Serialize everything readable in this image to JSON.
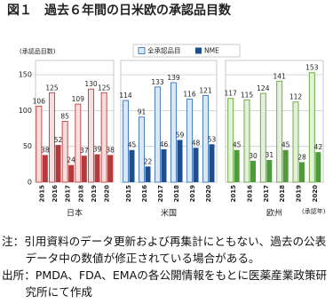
{
  "title": "図１　過去６年間の日米欧の承認品目数",
  "y_label": "(承認品目数)",
  "x_label": "(承認年)",
  "notes": [
    "注：引用資料のデータ更新および再集計にともない、過去の公表データ中の数値が修正されている場合がある。",
    "出所：PMDA、FDA、EMAの各公開情報をもとに医薬産業政策研究所にて作成"
  ],
  "chart_data": [
    {
      "type": "bar",
      "title": "日本",
      "categories": [
        "2015",
        "2016",
        "2017",
        "2018",
        "2019",
        "2020"
      ],
      "series": [
        {
          "name": "全承認品目",
          "color": "#f7dede",
          "edge": "#c0504d",
          "values": [
            106,
            125,
            85,
            109,
            130,
            125
          ]
        },
        {
          "name": "NME",
          "color": "#b5393a",
          "values": [
            38,
            52,
            24,
            37,
            39,
            38
          ]
        }
      ],
      "ylim": [
        0,
        170
      ],
      "yticks": [
        0,
        50,
        100,
        150
      ],
      "grid": true
    },
    {
      "type": "bar",
      "title": "米国",
      "categories": [
        "2015",
        "2016",
        "2017",
        "2018",
        "2019",
        "2020"
      ],
      "series": [
        {
          "name": "全承認品目",
          "color": "#dde7f3",
          "edge": "#4f81bd",
          "values": [
            114,
            91,
            133,
            139,
            116,
            121
          ]
        },
        {
          "name": "NME",
          "color": "#1f4e8c",
          "values": [
            45,
            22,
            46,
            59,
            48,
            53
          ]
        }
      ],
      "ylim": [
        0,
        170
      ],
      "yticks": [
        0,
        50,
        100,
        150
      ],
      "grid": true
    },
    {
      "type": "bar",
      "title": "欧州",
      "categories": [
        "2015",
        "2016",
        "2017",
        "2018",
        "2019",
        "2020"
      ],
      "series": [
        {
          "name": "全承認品目",
          "color": "#e3f0da",
          "edge": "#70ad47",
          "values": [
            117,
            115,
            124,
            141,
            112,
            153
          ]
        },
        {
          "name": "NME",
          "color": "#4f9a3b",
          "values": [
            45,
            30,
            31,
            45,
            28,
            42
          ]
        }
      ],
      "ylim": [
        0,
        170
      ],
      "yticks": [
        0,
        50,
        100,
        150
      ],
      "grid": true
    }
  ]
}
